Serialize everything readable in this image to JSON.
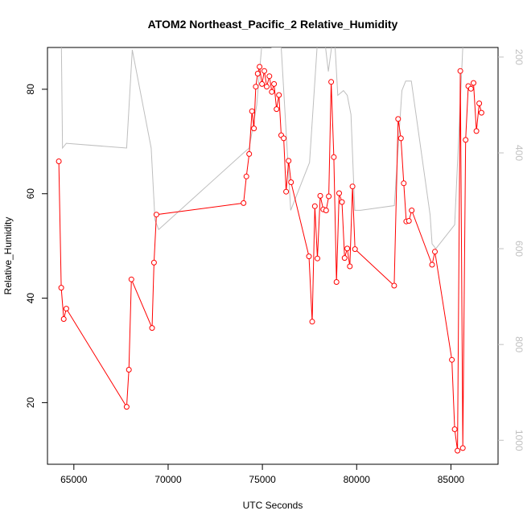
{
  "chart_data": {
    "type": "line",
    "title": "ATOM2 Northeast_Pacific_2 Relative_Humidity",
    "xlabel": "UTC Seconds",
    "ylabel": "Relative_Humidity",
    "xlim": [
      63600,
      87500
    ],
    "ylim": [
      8.2,
      88.0
    ],
    "xticks": [
      65000,
      70000,
      75000,
      80000,
      85000
    ],
    "yticks": [
      20,
      40,
      60,
      80
    ],
    "y2lim": [
      1050,
      180
    ],
    "y2ticks": [
      200,
      400,
      600,
      800,
      1000
    ],
    "series": [
      {
        "color": "#ff0000",
        "markers": "open-circle",
        "x": [
          64200,
          64330,
          64460,
          64600,
          67800,
          67920,
          68050,
          69150,
          69250,
          69380,
          74000,
          74150,
          74300,
          74450,
          74550,
          74650,
          74750,
          74850,
          74980,
          75100,
          75230,
          75370,
          75500,
          75620,
          75750,
          75880,
          76000,
          76130,
          76260,
          76390,
          76520,
          77470,
          77640,
          77780,
          77920,
          78070,
          78230,
          78380,
          78520,
          78650,
          78790,
          78930,
          79070,
          79220,
          79360,
          79500,
          79640,
          79780,
          79910,
          81990,
          82200,
          82350,
          82500,
          82630,
          82770,
          82920,
          84000,
          84150,
          85050,
          85200,
          85350,
          85500,
          85630,
          85780,
          85920,
          86060,
          86200,
          86350,
          86500,
          86620
        ],
        "y": [
          66.2,
          42.0,
          36.0,
          38.0,
          19.2,
          26.3,
          43.6,
          34.3,
          46.8,
          56.0,
          58.2,
          63.3,
          67.6,
          75.8,
          72.5,
          80.5,
          83.0,
          84.3,
          81.0,
          83.5,
          80.5,
          82.5,
          79.5,
          81.0,
          76.2,
          78.9,
          71.2,
          70.6,
          60.4,
          66.3,
          62.2,
          48.0,
          35.5,
          57.6,
          47.6,
          59.6,
          57.0,
          56.8,
          59.5,
          81.4,
          67.0,
          43.1,
          60.1,
          58.4,
          47.7,
          49.5,
          46.1,
          61.4,
          49.4,
          42.4,
          74.3,
          70.6,
          62.0,
          54.7,
          54.8,
          56.8,
          46.4,
          48.9,
          28.2,
          14.9,
          10.8,
          83.5,
          11.3,
          70.3,
          80.6,
          80.1,
          81.2,
          72.0,
          77.3,
          75.5
        ]
      },
      {
        "color": "#bebebe",
        "markers": "none",
        "axis": "right",
        "x": [
          63800,
          64300,
          64400,
          64600,
          67800,
          68100,
          69100,
          69300,
          69500,
          74000,
          74300,
          74700,
          75000,
          75500,
          76000,
          76500,
          77000,
          77500,
          78000,
          78200,
          78500,
          78800,
          79000,
          79300,
          79500,
          79700,
          79900,
          80200,
          82000,
          82400,
          82600,
          82900,
          83900,
          84000,
          84200,
          85200,
          85700,
          86000,
          86500,
          86700
        ],
        "y": [
          150,
          40,
          390,
          380,
          390,
          185,
          390,
          540,
          560,
          400,
          390,
          300,
          160,
          180,
          180,
          520,
          470,
          420,
          120,
          130,
          230,
          140,
          280,
          270,
          280,
          320,
          520,
          520,
          510,
          270,
          250,
          250,
          530,
          590,
          600,
          550,
          120,
          110,
          140,
          150
        ]
      }
    ]
  }
}
